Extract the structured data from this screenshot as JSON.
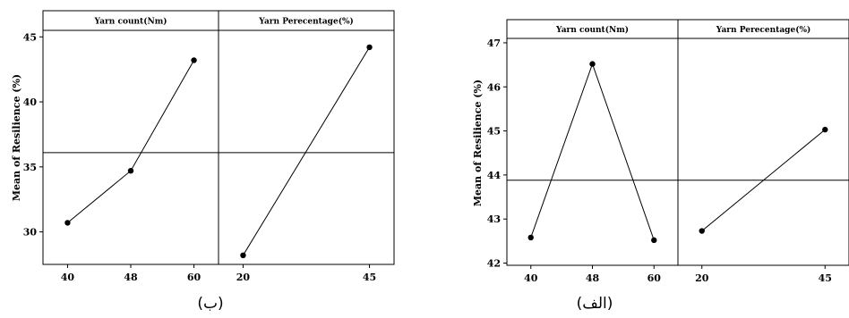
{
  "chart_data": [
    {
      "type": "line",
      "ylabel": "Mean of Resilience (%)",
      "ylim": [
        27.5,
        45.5
      ],
      "yticks": [
        30,
        35,
        40,
        45
      ],
      "grand_mean": 36.1,
      "caption": "(ب)",
      "facets": [
        {
          "name": "Yarn count(Nm)",
          "x": [
            "40",
            "48",
            "60"
          ],
          "y": [
            30.7,
            34.7,
            43.2
          ]
        },
        {
          "name": "Yarn Perecentage(%)",
          "x": [
            "20",
            "45"
          ],
          "y": [
            28.2,
            44.2
          ]
        }
      ]
    },
    {
      "type": "line",
      "ylabel": "Mean of Resilience (%)",
      "ylim": [
        41.95,
        47.1
      ],
      "yticks": [
        42,
        43,
        44,
        45,
        46,
        47
      ],
      "grand_mean": 43.88,
      "caption": "(الف)",
      "facets": [
        {
          "name": "Yarn count(Nm)",
          "x": [
            "40",
            "48",
            "60"
          ],
          "y": [
            42.58,
            46.52,
            42.52
          ]
        },
        {
          "name": "Yarn Perecentage(%)",
          "x": [
            "20",
            "45"
          ],
          "y": [
            42.73,
            45.03
          ]
        }
      ]
    }
  ]
}
